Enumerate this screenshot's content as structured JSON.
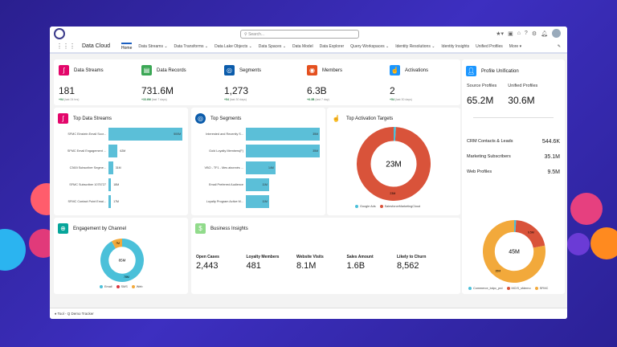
{
  "header": {
    "search_placeholder": "Search...",
    "app_name": "Data Cloud"
  },
  "nav": [
    "Home",
    "Data Streams ⌄",
    "Data Transforms ⌄",
    "Data Lake Objects ⌄",
    "Data Spaces ⌄",
    "Data Model",
    "Data Explorer",
    "Query Workspaces ⌄",
    "Identity Resolutions ⌄",
    "Identity Insights",
    "Unified Profiles",
    "More ▾"
  ],
  "kpis": [
    {
      "title": "Data Streams",
      "value": "181",
      "delta": "+94",
      "period": "(last 24 hrs)",
      "color": "#e3066a",
      "icon": "data-stream-icon"
    },
    {
      "title": "Data Records",
      "value": "731.6M",
      "delta": "+33.6M",
      "period": "(last 7 days)",
      "color": "#3ba755",
      "icon": "clipboard-icon"
    },
    {
      "title": "Segments",
      "value": "1,273",
      "delta": "+54",
      "period": "(last 30 days)",
      "color": "#0b5cab",
      "icon": "segment-icon"
    },
    {
      "title": "Members",
      "value": "6.3B",
      "delta": "+6.3B",
      "period": "(last 7 day)",
      "color": "#e4501f",
      "icon": "members-icon"
    },
    {
      "title": "Activations",
      "value": "2",
      "delta": "+54",
      "period": "(last 30 days)",
      "color": "#1b96ff",
      "icon": "activation-icon"
    }
  ],
  "top_streams": {
    "title": "Top Data Streams",
    "rows": [
      {
        "label": "SFMC Einstein Email Scor...",
        "value": 500,
        "text": "500M"
      },
      {
        "label": "SFMC Email Engagement ...",
        "value": 62,
        "text": "62M"
      },
      {
        "label": "C360i Subscriber Segme...",
        "value": 31,
        "text": "31M"
      },
      {
        "label": "SFMC Subscriber 1075727",
        "value": 18,
        "text": "18M"
      },
      {
        "label": "SFMC Contact Point Emai...",
        "value": 17,
        "text": "17M"
      }
    ]
  },
  "top_segments": {
    "title": "Top Segments",
    "rows": [
      {
        "label": "Interested and Recently S...",
        "value": 35,
        "text": "35M"
      },
      {
        "label": "Gold Loyalty Members(F)",
        "value": 35,
        "text": "35M"
      },
      {
        "label": "VBO - TF1 - Mes abonnés ...",
        "value": 14,
        "text": "14M"
      },
      {
        "label": "Email Preferred Audience",
        "value": 11,
        "text": "11M"
      },
      {
        "label": "Loyalty Program Active M...",
        "value": 11,
        "text": "11M"
      }
    ]
  },
  "activation_targets": {
    "title": "Top Activation Targets",
    "center": "23M",
    "slices": [
      {
        "name": "Google Ads",
        "value": 1,
        "color": "#4bc0d9"
      },
      {
        "name": "SalesforceMarketingCloud",
        "value": 99,
        "color": "#d9533a",
        "label": "23M"
      }
    ]
  },
  "profile": {
    "title": "Profile Unification",
    "source_label": "Source Profiles",
    "source": "65.2M",
    "unified_label": "Unified Profiles",
    "unified": "30.6M",
    "rows": [
      {
        "label": "CRM Contacts & Leads",
        "value": "544.6K"
      },
      {
        "label": "Marketing Subscribers",
        "value": "35.1M"
      },
      {
        "label": "Web Profiles",
        "value": "9.5M"
      }
    ],
    "center": "45M",
    "slices": [
      {
        "name": "Commerce_bdpc_prd",
        "value": 1,
        "color": "#4bc0d9"
      },
      {
        "name": "MCIS_sfdemo",
        "value": 21,
        "color": "#d9533a",
        "label": "9.5M"
      },
      {
        "name": "SFMC",
        "value": 78,
        "color": "#f2a93b",
        "label": "35M"
      }
    ]
  },
  "engagement": {
    "title": "Engagement by Channel",
    "center": "85M",
    "slices": [
      {
        "name": "Email",
        "value": 92,
        "color": "#4bc0d9",
        "label": "78M"
      },
      {
        "name": "SMS",
        "value": 0,
        "color": "#d9363e"
      },
      {
        "name": "Web",
        "value": 8,
        "color": "#f2a93b",
        "label": "7M"
      }
    ]
  },
  "insights": {
    "title": "Business Insights",
    "items": [
      {
        "label": "Open Cases",
        "value": "2,443"
      },
      {
        "label": "Loyalty Members",
        "value": "481"
      },
      {
        "label": "Website Visits",
        "value": "8.1M"
      },
      {
        "label": "Sales Amount",
        "value": "1.6B"
      },
      {
        "label": "Likely to Churn",
        "value": "8,562"
      }
    ]
  },
  "footer": "Tool - Q Demo Tracker"
}
